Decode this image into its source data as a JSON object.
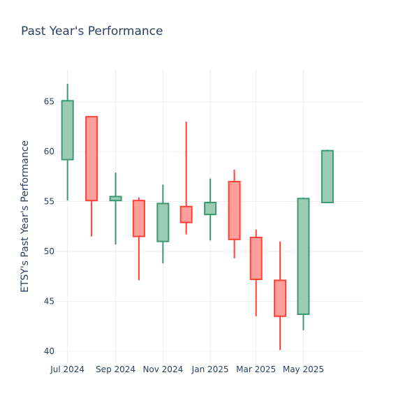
{
  "chart_data": {
    "type": "candlestick",
    "title": "Past Year's Performance",
    "xlabel": "",
    "ylabel": "ETSY's Past Year's Performance",
    "ylim": [
      38.8,
      68.2
    ],
    "yticks": [
      40,
      45,
      50,
      55,
      60,
      65
    ],
    "x_range": [
      "2024-06-16",
      "2025-07-17"
    ],
    "xticks": [
      {
        "date": "2024-07-01",
        "label": "Jul 2024"
      },
      {
        "date": "2024-09-01",
        "label": "Sep 2024"
      },
      {
        "date": "2024-11-01",
        "label": "Nov 2024"
      },
      {
        "date": "2025-01-01",
        "label": "Jan 2025"
      },
      {
        "date": "2025-03-01",
        "label": "Mar 2025"
      },
      {
        "date": "2025-05-01",
        "label": "May 2025"
      }
    ],
    "colors": {
      "increasing": "#3d9970",
      "decreasing": "#ff4136"
    },
    "grid": true,
    "candles": [
      {
        "date": "2024-07-01",
        "open": 59.2,
        "high": 66.8,
        "low": 55.1,
        "close": 65.1
      },
      {
        "date": "2024-08-01",
        "open": 63.5,
        "high": 63.5,
        "low": 51.5,
        "close": 55.1
      },
      {
        "date": "2024-09-01",
        "open": 55.1,
        "high": 57.9,
        "low": 50.7,
        "close": 55.5
      },
      {
        "date": "2024-10-01",
        "open": 55.1,
        "high": 55.4,
        "low": 47.1,
        "close": 51.5
      },
      {
        "date": "2024-11-01",
        "open": 51.0,
        "high": 56.7,
        "low": 48.8,
        "close": 54.8
      },
      {
        "date": "2024-12-01",
        "open": 54.5,
        "high": 63.0,
        "low": 51.7,
        "close": 52.9
      },
      {
        "date": "2025-01-01",
        "open": 53.7,
        "high": 57.3,
        "low": 51.1,
        "close": 54.9
      },
      {
        "date": "2025-02-01",
        "open": 57.0,
        "high": 58.2,
        "low": 49.3,
        "close": 51.2
      },
      {
        "date": "2025-03-01",
        "open": 51.4,
        "high": 52.2,
        "low": 43.5,
        "close": 47.2
      },
      {
        "date": "2025-04-01",
        "open": 47.1,
        "high": 51.0,
        "low": 40.1,
        "close": 43.5
      },
      {
        "date": "2025-05-01",
        "open": 43.7,
        "high": 55.4,
        "low": 42.1,
        "close": 55.3
      },
      {
        "date": "2025-06-01",
        "open": 54.9,
        "high": 60.2,
        "low": 54.9,
        "close": 60.1
      }
    ]
  }
}
